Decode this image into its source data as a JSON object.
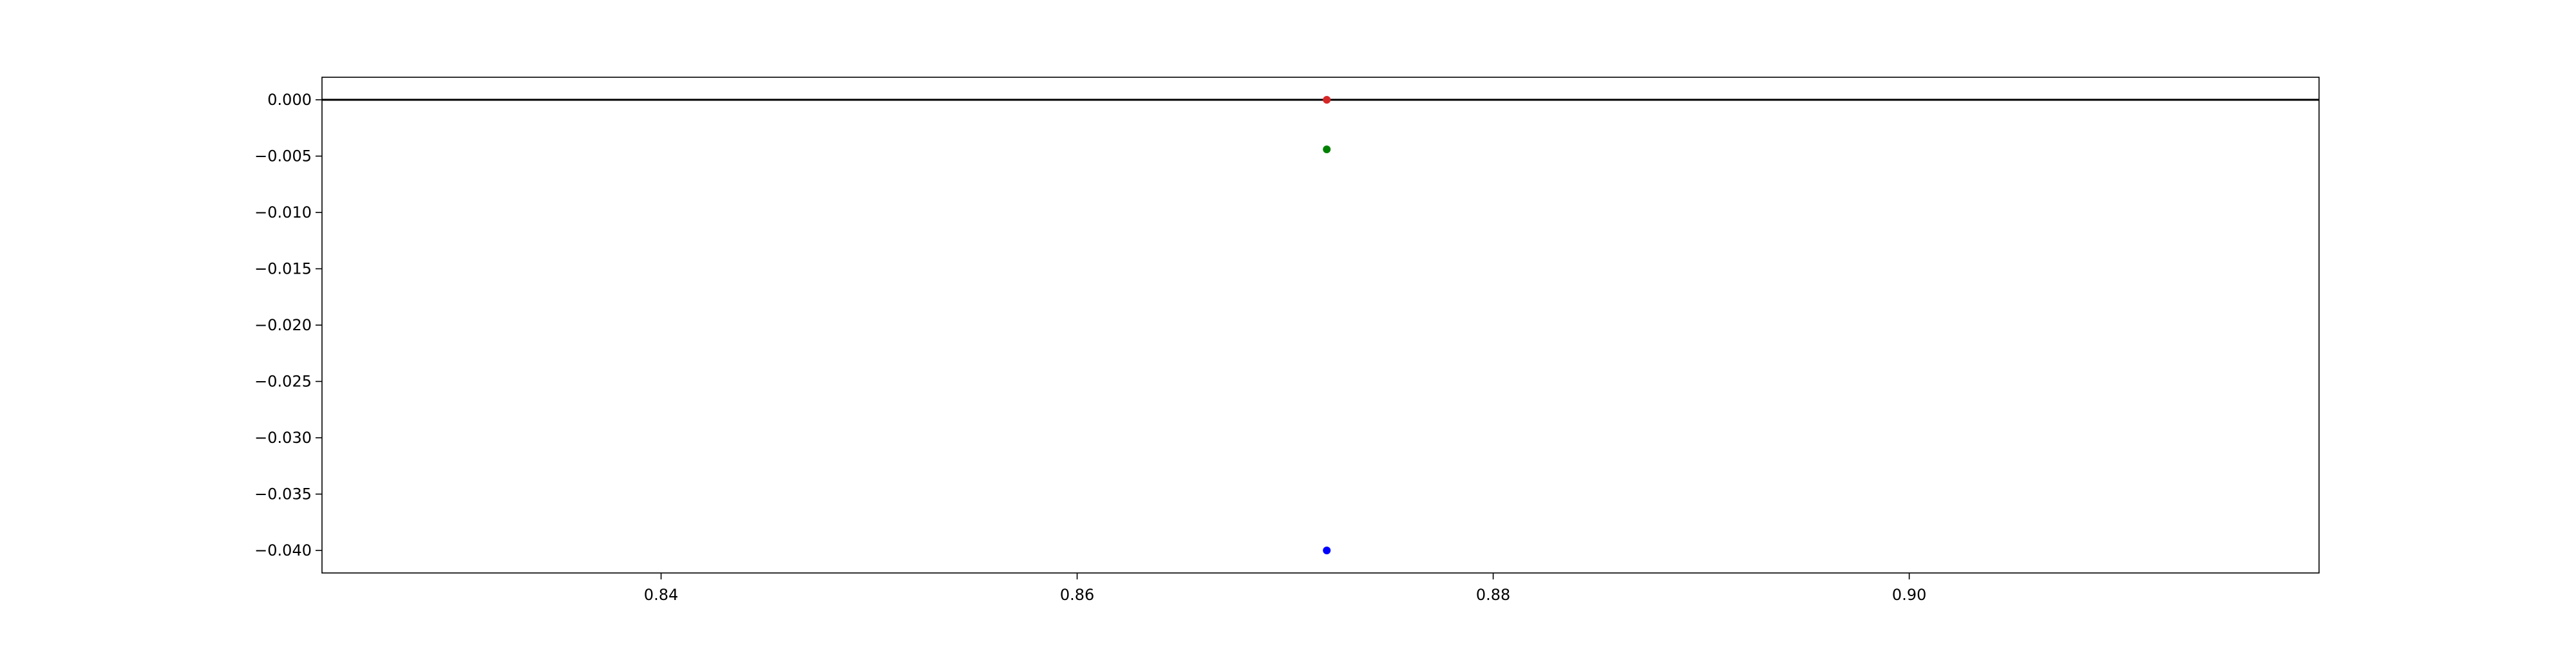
{
  "chart_data": {
    "type": "scatter",
    "title": "",
    "xlabel": "",
    "ylabel": "",
    "xlim": [
      0.8237,
      0.9197
    ],
    "ylim": [
      -0.042,
      0.002
    ],
    "grid": false,
    "x_ticks": [
      {
        "value": 0.84,
        "label": "0.84"
      },
      {
        "value": 0.86,
        "label": "0.86"
      },
      {
        "value": 0.88,
        "label": "0.88"
      },
      {
        "value": 0.9,
        "label": "0.90"
      }
    ],
    "y_ticks": [
      {
        "value": 0.0,
        "label": "0.000"
      },
      {
        "value": -0.005,
        "label": "−0.005"
      },
      {
        "value": -0.01,
        "label": "−0.010"
      },
      {
        "value": -0.015,
        "label": "−0.015"
      },
      {
        "value": -0.02,
        "label": "−0.020"
      },
      {
        "value": -0.025,
        "label": "−0.025"
      },
      {
        "value": -0.03,
        "label": "−0.030"
      },
      {
        "value": -0.035,
        "label": "−0.035"
      },
      {
        "value": -0.04,
        "label": "−0.040"
      }
    ],
    "reference_line": {
      "y": 0.0,
      "color": "#000000"
    },
    "series": [
      {
        "color": "#d62728",
        "points": [
          {
            "x": 0.872,
            "y": 0.0
          }
        ]
      },
      {
        "color": "#008000",
        "points": [
          {
            "x": 0.872,
            "y": -0.0044
          }
        ]
      },
      {
        "color": "#0000ff",
        "points": [
          {
            "x": 0.872,
            "y": -0.04
          }
        ]
      }
    ]
  }
}
